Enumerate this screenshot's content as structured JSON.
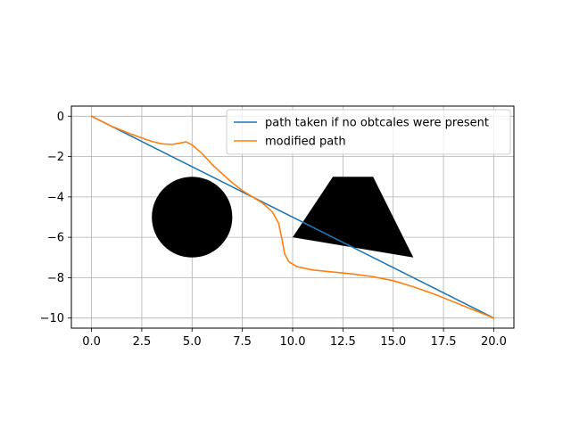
{
  "chart_data": {
    "type": "line",
    "title": "",
    "xlabel": "",
    "ylabel": "",
    "xlim": [
      -1.0,
      21.0
    ],
    "ylim": [
      -10.5,
      0.5
    ],
    "xticks": [
      0.0,
      2.5,
      5.0,
      7.5,
      10.0,
      12.5,
      15.0,
      17.5,
      20.0
    ],
    "xtick_labels": [
      "0.0",
      "2.5",
      "5.0",
      "7.5",
      "10.0",
      "12.5",
      "15.0",
      "17.5",
      "20.0"
    ],
    "yticks": [
      0,
      -2,
      -4,
      -6,
      -8,
      -10
    ],
    "ytick_labels": [
      "0",
      "−2",
      "−4",
      "−6",
      "−8",
      "−10"
    ],
    "grid": true,
    "legend_position": "top-right",
    "series": [
      {
        "name": "path taken if no obtcales were present",
        "color": "#1f77b4",
        "points": [
          [
            0,
            0
          ],
          [
            20,
            -10
          ]
        ]
      },
      {
        "name": "modified path",
        "color": "#ff7f0e",
        "points": [
          [
            0,
            0
          ],
          [
            1,
            -0.5
          ],
          [
            2,
            -0.9
          ],
          [
            3,
            -1.25
          ],
          [
            3.5,
            -1.37
          ],
          [
            4,
            -1.4
          ],
          [
            4.4,
            -1.33
          ],
          [
            4.7,
            -1.27
          ],
          [
            5,
            -1.42
          ],
          [
            5.5,
            -1.85
          ],
          [
            6,
            -2.4
          ],
          [
            6.5,
            -2.85
          ],
          [
            7,
            -3.3
          ],
          [
            7.5,
            -3.68
          ],
          [
            8,
            -4.0
          ],
          [
            8.5,
            -4.3
          ],
          [
            9,
            -4.75
          ],
          [
            9.3,
            -5.3
          ],
          [
            9.45,
            -6.0
          ],
          [
            9.6,
            -6.8
          ],
          [
            9.8,
            -7.2
          ],
          [
            10.2,
            -7.45
          ],
          [
            11,
            -7.62
          ],
          [
            12,
            -7.72
          ],
          [
            13,
            -7.82
          ],
          [
            14,
            -7.95
          ],
          [
            15,
            -8.15
          ],
          [
            16,
            -8.45
          ],
          [
            17,
            -8.8
          ],
          [
            18,
            -9.2
          ],
          [
            19,
            -9.6
          ],
          [
            20,
            -10
          ]
        ]
      }
    ],
    "obstacles": [
      {
        "kind": "circle",
        "center": [
          5,
          -5
        ],
        "radius": 2,
        "color": "#000000"
      },
      {
        "kind": "polygon",
        "points": [
          [
            10,
            -6
          ],
          [
            12,
            -3
          ],
          [
            14,
            -3
          ],
          [
            16,
            -7
          ]
        ],
        "color": "#000000"
      }
    ]
  }
}
